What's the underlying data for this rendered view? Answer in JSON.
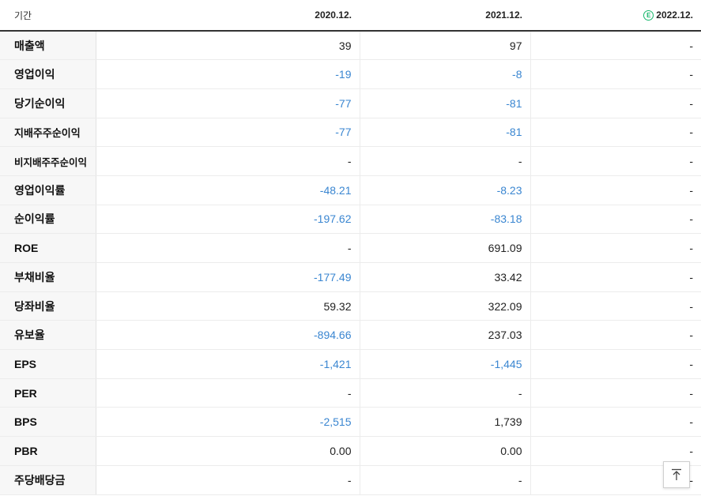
{
  "header": {
    "period_label": "기간",
    "columns": [
      "2020.12.",
      "2021.12.",
      "2022.12."
    ],
    "estimate_badge": "E"
  },
  "rows": [
    {
      "label": "매출액",
      "values": [
        "39",
        "97",
        "-"
      ]
    },
    {
      "label": "영업이익",
      "values": [
        "-19",
        "-8",
        "-"
      ]
    },
    {
      "label": "당기순이익",
      "values": [
        "-77",
        "-81",
        "-"
      ]
    },
    {
      "label": "지배주주순이익",
      "values": [
        "-77",
        "-81",
        "-"
      ]
    },
    {
      "label": "비지배주주순이익",
      "values": [
        "-",
        "-",
        "-"
      ]
    },
    {
      "label": "영업이익률",
      "values": [
        "-48.21",
        "-8.23",
        "-"
      ]
    },
    {
      "label": "순이익률",
      "values": [
        "-197.62",
        "-83.18",
        "-"
      ]
    },
    {
      "label": "ROE",
      "values": [
        "-",
        "691.09",
        "-"
      ]
    },
    {
      "label": "부채비율",
      "values": [
        "-177.49",
        "33.42",
        "-"
      ]
    },
    {
      "label": "당좌비율",
      "values": [
        "59.32",
        "322.09",
        "-"
      ]
    },
    {
      "label": "유보율",
      "values": [
        "-894.66",
        "237.03",
        "-"
      ]
    },
    {
      "label": "EPS",
      "values": [
        "-1,421",
        "-1,445",
        "-"
      ]
    },
    {
      "label": "PER",
      "values": [
        "-",
        "-",
        "-"
      ]
    },
    {
      "label": "BPS",
      "values": [
        "-2,515",
        "1,739",
        "-"
      ]
    },
    {
      "label": "PBR",
      "values": [
        "0.00",
        "0.00",
        "-"
      ]
    },
    {
      "label": "주당배당금",
      "values": [
        "-",
        "-",
        "-"
      ]
    }
  ],
  "colors": {
    "negative": "#3a86d1",
    "estimate": "#16b66b"
  },
  "scroll_top_icon": "arrow-up-to-top-icon"
}
